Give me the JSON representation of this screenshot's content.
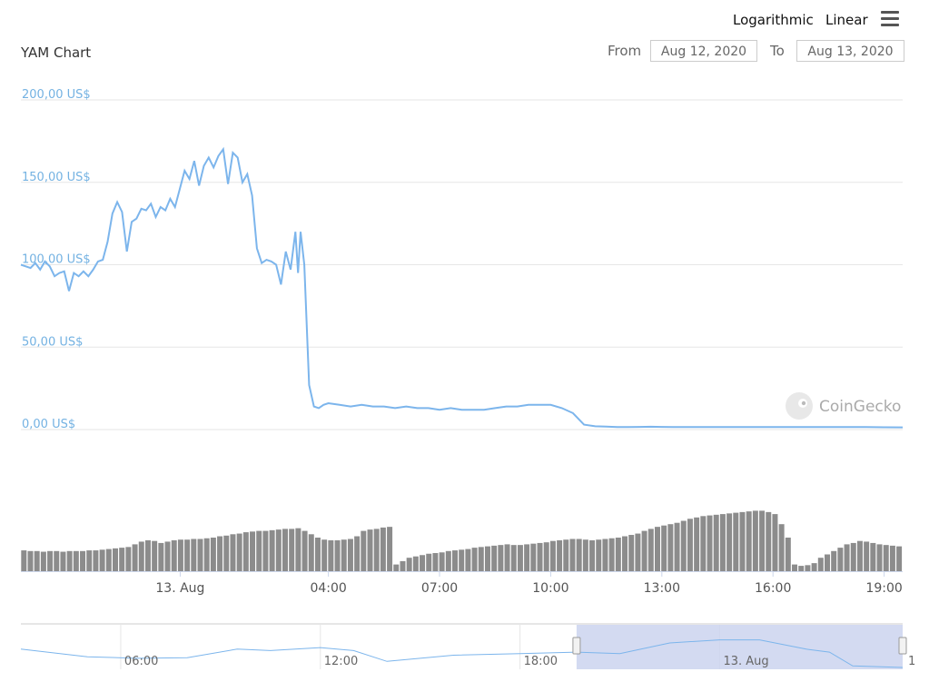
{
  "header": {
    "title": "YAM Chart",
    "scale_logarithmic": "Logarithmic",
    "scale_linear": "Linear",
    "menu_icon": "hamburger-menu-icon",
    "from_label": "From",
    "from_value": "Aug 12, 2020",
    "to_label": "To",
    "to_value": "Aug 13, 2020"
  },
  "watermark": {
    "text": "CoinGecko",
    "icon": "coingecko-logo-icon"
  },
  "colors": {
    "price_line": "#7cb5ec",
    "volume_bar": "#8c8c8c",
    "axis_label": "#74b2e2",
    "navigator_selection": "#cbd3ee"
  },
  "chart_data": {
    "type": "line",
    "title": "YAM Chart",
    "y_axis": {
      "ticks": [
        0,
        50,
        100,
        150,
        200
      ],
      "tick_labels": [
        "0,00 US$",
        "50,00 US$",
        "100,00 US$",
        "150,00 US$",
        "200,00 US$"
      ],
      "ylim": [
        0,
        200
      ]
    },
    "x_axis": {
      "tick_labels": [
        "13. Aug",
        "04:00",
        "07:00",
        "10:00",
        "13:00",
        "16:00",
        "19:00"
      ],
      "tick_hours": [
        0,
        4,
        7,
        10,
        13,
        16,
        19
      ],
      "xlim_hours": [
        -4.3,
        19.5
      ]
    },
    "grid": true,
    "series": [
      {
        "type": "line",
        "x_hours": [
          -4.3,
          -4.17,
          -4.04,
          -3.91,
          -3.78,
          -3.65,
          -3.52,
          -3.39,
          -3.26,
          -3.13,
          -3.0,
          -2.87,
          -2.74,
          -2.61,
          -2.48,
          -2.35,
          -2.22,
          -2.09,
          -1.96,
          -1.83,
          -1.7,
          -1.57,
          -1.44,
          -1.31,
          -1.18,
          -1.05,
          -0.92,
          -0.79,
          -0.66,
          -0.53,
          -0.4,
          -0.27,
          -0.14,
          -0.01,
          0.12,
          0.25,
          0.38,
          0.51,
          0.64,
          0.77,
          0.9,
          1.03,
          1.16,
          1.29,
          1.42,
          1.55,
          1.68,
          1.81,
          1.94,
          2.07,
          2.2,
          2.33,
          2.46,
          2.59,
          2.72,
          2.85,
          2.98,
          3.11,
          3.18,
          3.25,
          3.35,
          3.48,
          3.61,
          3.74,
          3.87,
          4.0,
          4.3,
          4.6,
          4.9,
          5.2,
          5.5,
          5.8,
          6.1,
          6.4,
          6.7,
          7.0,
          7.3,
          7.6,
          7.9,
          8.2,
          8.5,
          8.8,
          9.1,
          9.4,
          9.7,
          10.0,
          10.3,
          10.6,
          10.9,
          11.2,
          11.5,
          11.8,
          12.1,
          12.4,
          12.7,
          13.0,
          13.3,
          13.6,
          13.9,
          14.2,
          14.5,
          14.7,
          14.9,
          15.05,
          15.2,
          15.6,
          16.0,
          16.5,
          17.0,
          17.5,
          18.0,
          18.5,
          19.0,
          19.5
        ],
        "y": [
          100,
          99,
          98,
          101,
          97,
          102,
          99,
          93,
          95,
          96,
          84,
          95,
          93,
          96,
          93,
          97,
          102,
          103,
          114,
          131,
          138,
          132,
          108,
          126,
          128,
          134,
          133,
          137,
          129,
          135,
          133,
          140,
          135,
          146,
          157,
          152,
          163,
          148,
          160,
          165,
          159,
          166,
          170,
          149,
          168,
          165,
          150,
          155,
          142,
          110,
          101,
          103,
          102,
          100,
          88,
          108,
          97,
          120,
          95,
          120,
          100,
          27,
          14,
          13,
          15,
          16,
          15,
          14,
          15,
          14,
          14,
          13,
          14,
          13,
          13,
          12,
          13,
          12,
          12,
          12,
          13,
          14,
          14,
          15,
          15,
          15,
          13,
          10,
          3,
          2,
          1.8,
          1.5,
          1.5,
          1.6,
          1.7,
          1.6,
          1.5,
          1.5,
          1.5,
          1.5,
          1.5,
          1.5,
          1.5,
          1.5,
          1.5,
          1.5,
          1.5,
          1.5,
          1.5,
          1.5,
          1.5,
          1.5,
          1.4,
          1.3
        ]
      }
    ],
    "volume": {
      "unit": "relative",
      "x_hours_start": -4.3,
      "x_hours_end": 19.5,
      "values": [
        0.31,
        0.3,
        0.3,
        0.29,
        0.3,
        0.3,
        0.29,
        0.3,
        0.3,
        0.3,
        0.31,
        0.31,
        0.32,
        0.33,
        0.34,
        0.35,
        0.36,
        0.4,
        0.44,
        0.46,
        0.45,
        0.42,
        0.44,
        0.46,
        0.47,
        0.47,
        0.48,
        0.48,
        0.49,
        0.5,
        0.52,
        0.53,
        0.55,
        0.56,
        0.58,
        0.59,
        0.6,
        0.6,
        0.61,
        0.62,
        0.63,
        0.63,
        0.64,
        0.6,
        0.55,
        0.5,
        0.47,
        0.46,
        0.46,
        0.47,
        0.48,
        0.52,
        0.6,
        0.62,
        0.63,
        0.65,
        0.66,
        0.1,
        0.15,
        0.2,
        0.22,
        0.24,
        0.26,
        0.27,
        0.28,
        0.3,
        0.31,
        0.32,
        0.33,
        0.35,
        0.36,
        0.37,
        0.38,
        0.39,
        0.4,
        0.39,
        0.39,
        0.4,
        0.41,
        0.42,
        0.43,
        0.45,
        0.46,
        0.47,
        0.48,
        0.48,
        0.47,
        0.46,
        0.47,
        0.48,
        0.49,
        0.5,
        0.52,
        0.54,
        0.56,
        0.6,
        0.63,
        0.66,
        0.68,
        0.7,
        0.72,
        0.75,
        0.78,
        0.8,
        0.82,
        0.83,
        0.84,
        0.85,
        0.86,
        0.87,
        0.88,
        0.89,
        0.9,
        0.9,
        0.88,
        0.85,
        0.7,
        0.5,
        0.1,
        0.08,
        0.09,
        0.12,
        0.2,
        0.25,
        0.3,
        0.35,
        0.4,
        0.42,
        0.45,
        0.44,
        0.42,
        0.4,
        0.39,
        0.38,
        0.37
      ]
    }
  },
  "navigator": {
    "tick_labels": [
      "06:00",
      "12:00",
      "18:00",
      "13. Aug"
    ],
    "tick_hours": [
      -18,
      -12,
      -6,
      0
    ],
    "xlim_hours": [
      -21,
      5.5
    ],
    "selection_hours": [
      -4.3,
      5.5
    ],
    "trail_label": "1"
  }
}
